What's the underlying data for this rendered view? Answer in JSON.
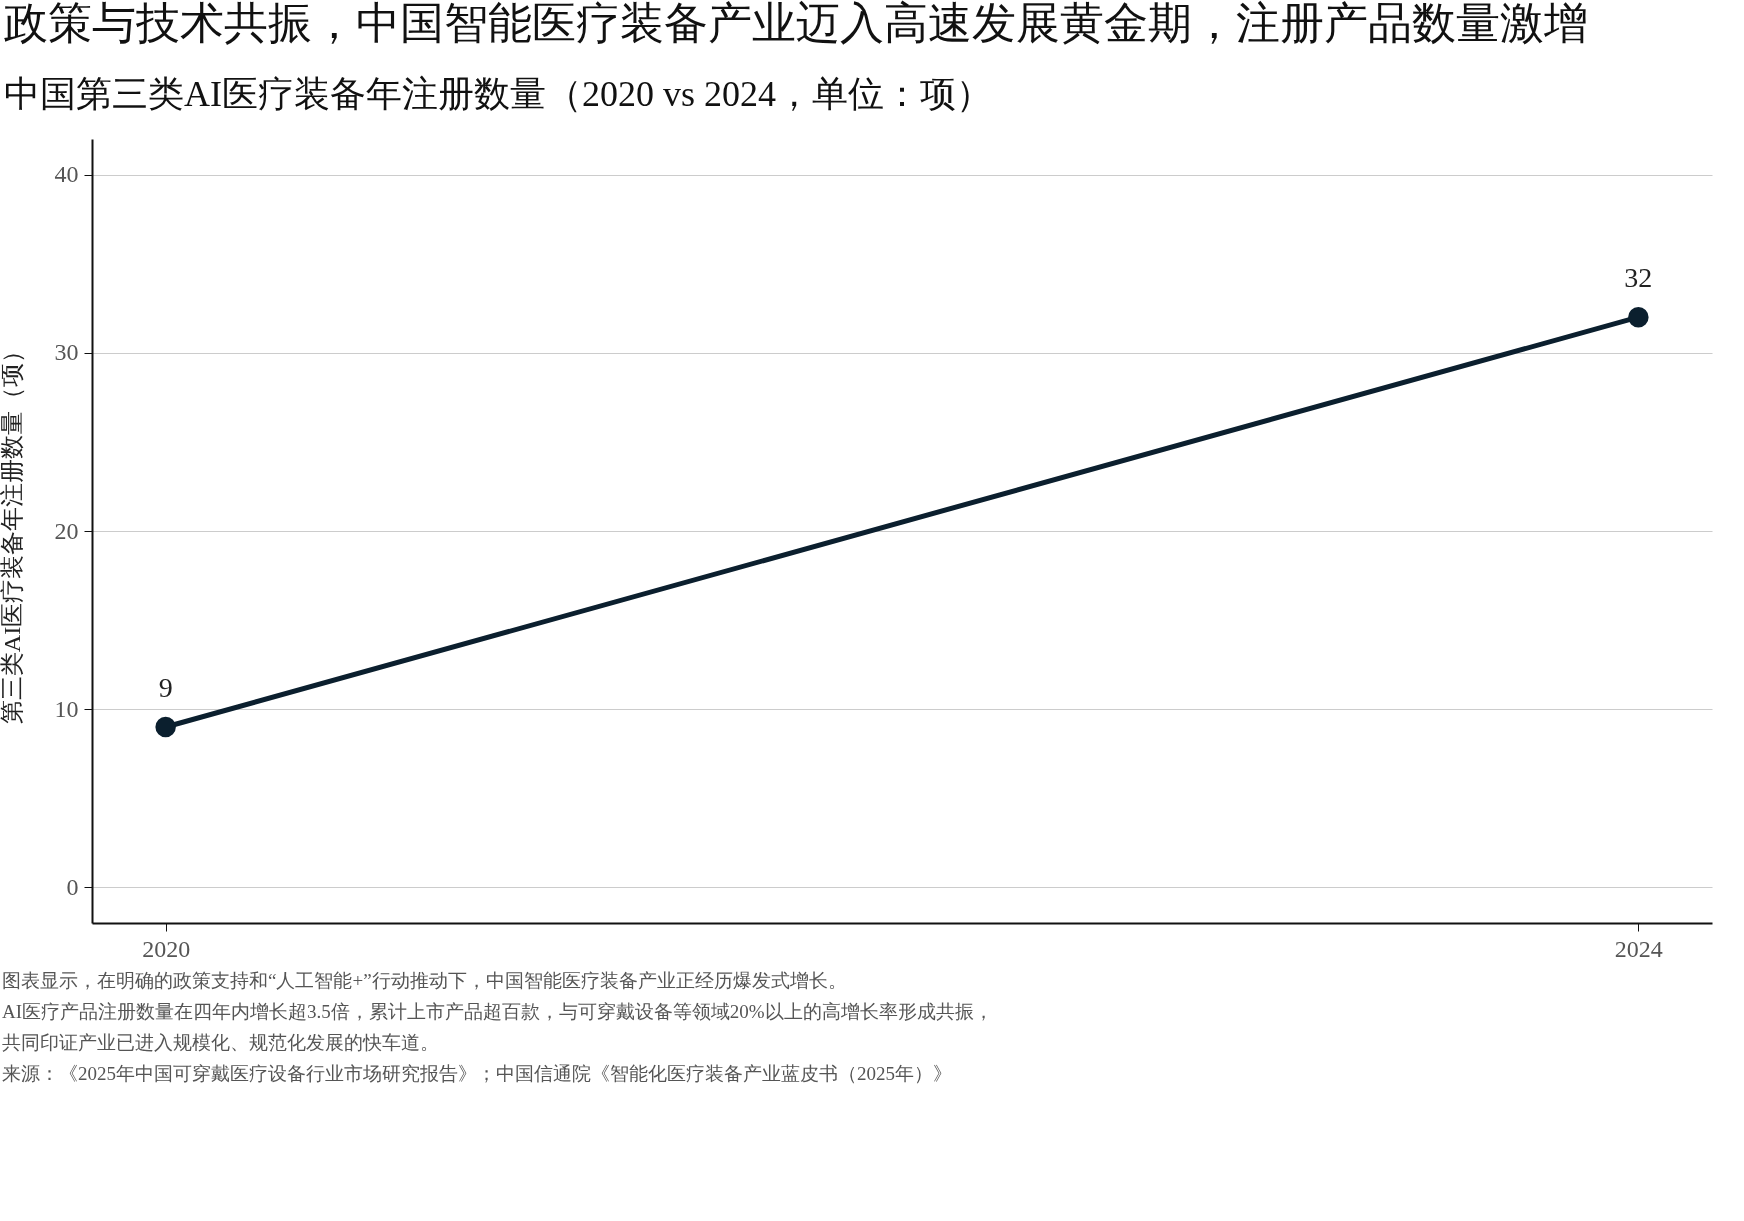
{
  "chart_data": {
    "type": "line",
    "title": "政策与技术共振，中国智能医疗装备产业迈入高速发展黄金期，注册产品数量激增",
    "subtitle": "中国第三类AI医疗装备年注册数量（2020 vs 2024，单位：项）",
    "ylabel": "第三类AI医疗装备年注册数量（项）",
    "x": [
      2020,
      2024
    ],
    "series": [
      {
        "color": "#0b1f2e",
        "values": [
          9,
          32
        ]
      }
    ],
    "xlim": [
      2019.8,
      2024.2
    ],
    "xticks": [
      2020,
      2024
    ],
    "ylim": [
      -2,
      42
    ],
    "yticks": [
      0,
      10,
      20,
      30,
      40
    ],
    "grid": "y",
    "marker": "circle",
    "line_style": "solid",
    "data_labels": true,
    "annotations": [
      "图表显示，在明确的政策支持和“人工智能+”行动推动下，中国智能医疗装备产业正经历爆发式增长。",
      "AI医疗产品注册数量在四年内增长超3.5倍，累计上市产品超百款，与可穿戴设备等领域20%以上的高增长率形成共振，",
      "共同印证产业已进入规模化、规范化发展的快车道。",
      "来源：《2025年中国可穿戴医疗设备行业市场研究报告》；中国信通院《智能化医疗装备产业蓝皮书（2025年）》"
    ]
  }
}
